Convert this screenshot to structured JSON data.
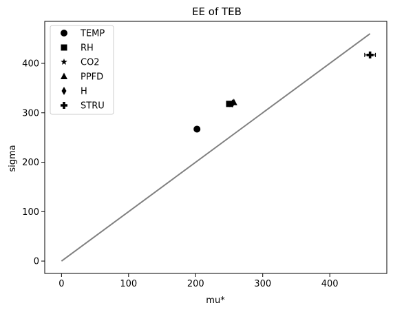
{
  "chart_data": {
    "type": "scatter",
    "title": "EE of TEB",
    "xlabel": "mu*",
    "ylabel": "sigma",
    "xlim": [
      -25,
      485
    ],
    "ylim": [
      -25,
      485
    ],
    "xticks": [
      0,
      100,
      200,
      300,
      400
    ],
    "yticks": [
      0,
      100,
      200,
      300,
      400
    ],
    "grid": false,
    "legend_position": "upper-left",
    "reference_line": {
      "x": [
        0,
        460
      ],
      "y": [
        0,
        460
      ],
      "color": "#808080"
    },
    "series": [
      {
        "name": "TEMP",
        "marker": "circle",
        "color": "#000000",
        "x": [
          202
        ],
        "y": [
          267
        ],
        "xerr": [
          0
        ]
      },
      {
        "name": "RH",
        "marker": "square",
        "color": "#000000",
        "x": [
          250
        ],
        "y": [
          318
        ],
        "xerr": [
          2
        ]
      },
      {
        "name": "CO2",
        "marker": "star",
        "color": "#000000",
        "x": [
          253
        ],
        "y": [
          317
        ],
        "xerr": [
          0
        ]
      },
      {
        "name": "PPFD",
        "marker": "triangle",
        "color": "#000000",
        "x": [
          257
        ],
        "y": [
          321
        ],
        "xerr": [
          0
        ]
      },
      {
        "name": "H",
        "marker": "diamond",
        "color": "#000000",
        "x": [
          255
        ],
        "y": [
          319
        ],
        "xerr": [
          0
        ]
      },
      {
        "name": "STRU",
        "marker": "plus",
        "color": "#000000",
        "x": [
          460
        ],
        "y": [
          417
        ],
        "xerr": [
          8
        ]
      }
    ]
  }
}
